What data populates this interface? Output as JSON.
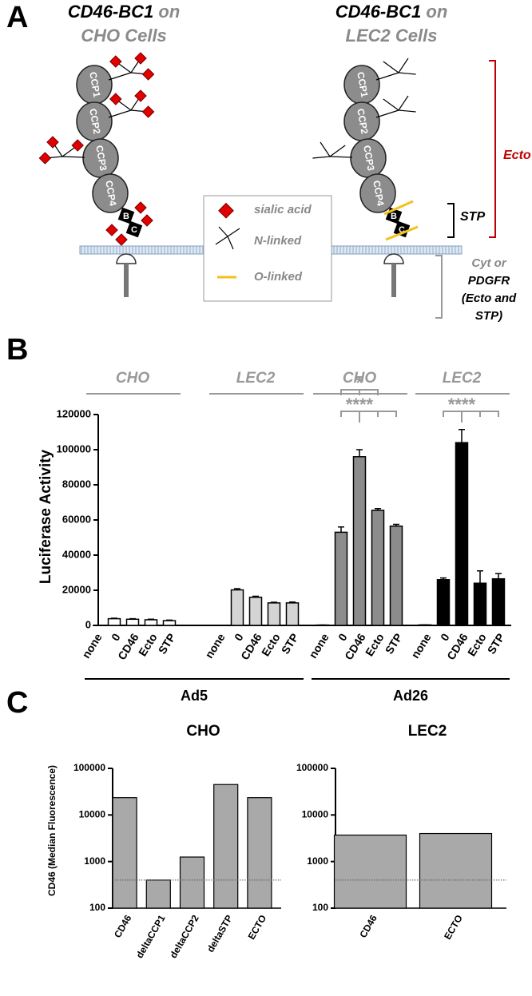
{
  "panel_labels": [
    "A",
    "B",
    "C"
  ],
  "diagram": {
    "cells": [
      {
        "construct": "CD46-BC1",
        "on": "on",
        "cell": "CHO Cells"
      },
      {
        "construct": "CD46-BC1",
        "on": "on",
        "cell": "LEC2 Cells"
      }
    ],
    "domains": [
      "CCP1",
      "CCP2",
      "CCP3",
      "CCP4",
      "B",
      "C"
    ],
    "legend": [
      "sialic acid",
      "N-linked",
      "O-linked"
    ],
    "regions": {
      "ecto": "Ecto",
      "stp": "STP",
      "cyt": "Cyt or",
      "pdgfr": [
        "PDGFR",
        "(Ecto and",
        "STP)"
      ]
    }
  },
  "chart_data": [
    {
      "type": "bar",
      "ylabel": "Luciferase Activity",
      "ylim": [
        0,
        120000
      ],
      "yticks": [
        0,
        20000,
        40000,
        60000,
        80000,
        100000,
        120000
      ],
      "categories": [
        "none",
        "0",
        "CD46",
        "Ecto",
        "STP"
      ],
      "series": [
        {
          "name": "CHO",
          "color": "#ffffff",
          "values": [
            0,
            3800,
            3500,
            3200,
            2700
          ],
          "errors": [
            0,
            300,
            300,
            300,
            300
          ]
        },
        {
          "name": "LEC2",
          "color": "#d4d4d4",
          "values": [
            0,
            20200,
            16000,
            12800,
            12800
          ],
          "errors": [
            0,
            700,
            600,
            400,
            500
          ]
        },
        {
          "name": "CHO",
          "color": "#8c8c8c",
          "values": [
            200,
            53000,
            96000,
            65500,
            56500
          ],
          "errors": [
            0,
            3000,
            4000,
            1000,
            1000
          ]
        },
        {
          "name": "LEC2",
          "color": "#000000",
          "values": [
            300,
            26000,
            104000,
            24000,
            26500
          ],
          "errors": [
            0,
            1000,
            7500,
            7000,
            3000
          ]
        }
      ],
      "super_groups": [
        "Ad5",
        "Ad26"
      ],
      "significance": [
        "*",
        "****",
        "****"
      ]
    },
    {
      "type": "bar",
      "title": "CHO",
      "ylabel": "CD46 (Median Fluorescence)",
      "log_scale": true,
      "ylim": [
        100,
        100000
      ],
      "yticks": [
        100,
        1000,
        10000,
        100000
      ],
      "categories": [
        "CD46",
        "deltaCCP1",
        "deltaCCP2",
        "deltaSTP",
        "ECTO"
      ],
      "values": [
        23500,
        400,
        1250,
        45000,
        23500
      ],
      "color": "#a9a9a9",
      "threshold": 400
    },
    {
      "type": "bar",
      "title": "LEC2",
      "log_scale": true,
      "ylim": [
        100,
        100000
      ],
      "yticks": [
        100,
        1000,
        10000,
        100000
      ],
      "categories": [
        "CD46",
        "ECTO"
      ],
      "values": [
        3700,
        4000
      ],
      "color": "#a9a9a9",
      "threshold": 400
    }
  ]
}
